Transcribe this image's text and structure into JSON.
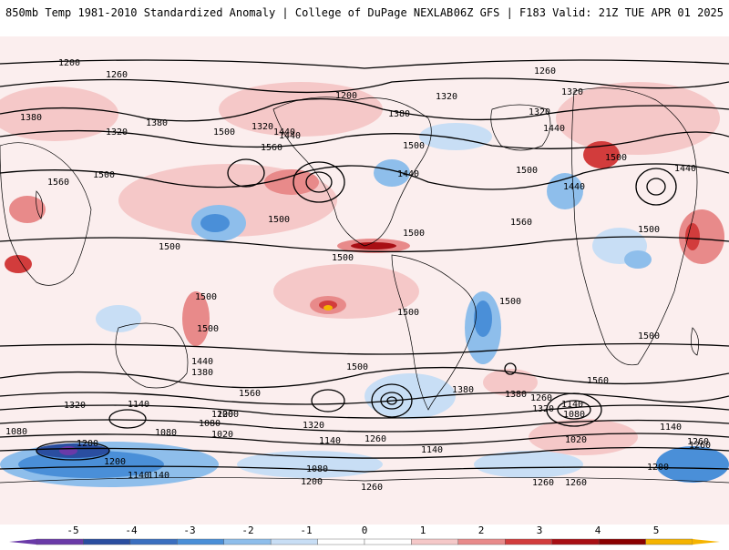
{
  "header": {
    "left_title": "850mb Temp 1981-2010 Standardized Anomaly | College of DuPage NEXLAB",
    "right_title": "06Z GFS | F183 Valid: 21Z TUE APR 01 2025"
  },
  "colors": {
    "background_anomaly_light": "#fbeeee",
    "warm_1": "#f5c8c8",
    "warm_2": "#e88a8a",
    "warm_3": "#d23c3c",
    "warm_4": "#a80f14",
    "warm_5": "#f5b400",
    "cold_1": "#c8def5",
    "cold_2": "#8ebeeb",
    "cold_3": "#4a8fd8",
    "cold_4": "#2a4ea0",
    "cold_5": "#6a3aa8",
    "contour": "#000000",
    "coastline": "#000000"
  },
  "colorbar": {
    "ticks": [
      "-5",
      "-4",
      "-3",
      "-2",
      "-1",
      "0",
      "1",
      "2",
      "3",
      "4",
      "5"
    ],
    "segment_colors": [
      "#6a3aa8",
      "#2a4ea0",
      "#3a6fc0",
      "#4a8fd8",
      "#8ebeeb",
      "#c8def5",
      "#ffffff",
      "#ffffff",
      "#f5c8c8",
      "#e88a8a",
      "#d23c3c",
      "#a80f14",
      "#8a0000",
      "#f5b400"
    ]
  },
  "contour_labels": {
    "values": [
      "1200",
      "1260",
      "1380",
      "1320",
      "1500",
      "1440",
      "1560",
      "1320",
      "1380",
      "1500",
      "1500",
      "1500",
      "1500",
      "1560",
      "1500",
      "1440",
      "1500",
      "1380",
      "1560",
      "1500",
      "1320",
      "1260",
      "1140",
      "1080",
      "1200",
      "1140",
      "1080",
      "1020",
      "1320",
      "1380",
      "1260",
      "1140",
      "1080",
      "1200",
      "1140",
      "1200",
      "1380",
      "1320",
      "1260",
      "1080",
      "1020",
      "1140",
      "1260",
      "1200",
      "1140",
      "1260",
      "1500",
      "1440",
      "1560",
      "1500",
      "1500",
      "1440",
      "1500",
      "1560",
      "1500",
      "1500",
      "1260",
      "1200",
      "1320",
      "1320",
      "1380",
      "1320",
      "1440",
      "1500",
      "1440",
      "1500",
      "1440",
      "1260",
      "1200",
      "1080",
      "1200",
      "1140",
      "1260"
    ]
  }
}
